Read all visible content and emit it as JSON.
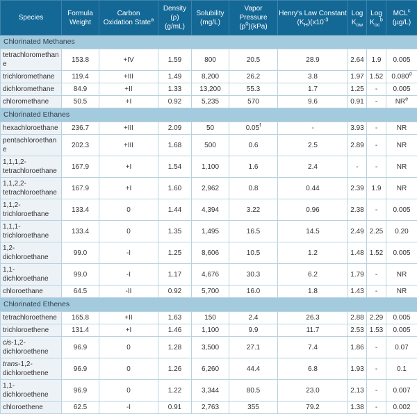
{
  "table": {
    "header": [
      {
        "name": "species",
        "lines": [
          "Species"
        ]
      },
      {
        "name": "formula-weight",
        "lines": [
          "Formula",
          "Weight"
        ]
      },
      {
        "name": "carbon-oxidation-state",
        "lines": [
          "Carbon",
          [
            {
              "t": "Oxidation State"
            },
            {
              "t": "a",
              "s": "sup"
            }
          ]
        ]
      },
      {
        "name": "density",
        "lines": [
          "Density (ρ)",
          "(g/mL)"
        ]
      },
      {
        "name": "solubility",
        "lines": [
          "Solubility",
          "(mg/L)"
        ]
      },
      {
        "name": "vapor-pressure",
        "lines": [
          "Vapor Pressure",
          [
            {
              "t": "(p"
            },
            {
              "t": "0",
              "s": "sup"
            },
            {
              "t": ")(kPa)"
            }
          ]
        ]
      },
      {
        "name": "henrys-law-constant",
        "lines": [
          "Henry's Law Constant",
          [
            {
              "t": "(K"
            },
            {
              "t": "H",
              "s": "sub"
            },
            {
              "t": ")(x10"
            },
            {
              "t": "-3",
              "s": "sup"
            }
          ]
        ]
      },
      {
        "name": "log-kow",
        "lines": [
          "Log",
          [
            {
              "t": "K"
            },
            {
              "t": "ow",
              "s": "sub"
            }
          ]
        ]
      },
      {
        "name": "log-koc",
        "lines": [
          "Log",
          [
            {
              "t": "K"
            },
            {
              "t": "oc",
              "s": "sub"
            },
            {
              "t": "b",
              "s": "sup"
            }
          ]
        ]
      },
      {
        "name": "mcl",
        "lines": [
          [
            {
              "t": "MCL"
            },
            {
              "t": "c",
              "s": "sup"
            }
          ],
          "(µg/L)"
        ]
      }
    ],
    "sections": [
      {
        "title": "Chlorinated Methanes",
        "rows": [
          {
            "species": "tetrachloromethane",
            "values": [
              "153.8",
              "+IV",
              "1.59",
              "800",
              "20.5",
              "28.9",
              "2.64",
              "1.9",
              "0.005"
            ]
          },
          {
            "species": "trichloromethane",
            "values": [
              "119.4",
              "+III",
              "1.49",
              "8,200",
              "26.2",
              "3.8",
              "1.97",
              "1.52",
              [
                {
                  "t": "0.080"
                },
                {
                  "t": "d",
                  "s": "sup"
                }
              ]
            ]
          },
          {
            "species": "dichloromethane",
            "values": [
              "84.9",
              "+II",
              "1.33",
              "13,200",
              "55.3",
              "1.7",
              "1.25",
              "-",
              "0.005"
            ]
          },
          {
            "species": "chloromethane",
            "values": [
              "50.5",
              "+I",
              "0.92",
              "5,235",
              "570",
              "9.6",
              "0.91",
              "-",
              [
                {
                  "t": "NR"
                },
                {
                  "t": "e",
                  "s": "sup"
                }
              ]
            ]
          }
        ]
      },
      {
        "title": "Chlorinated Ethanes",
        "rows": [
          {
            "species": "hexachloroethane",
            "values": [
              "236.7",
              "+III",
              "2.09",
              "50",
              [
                {
                  "t": "0.05"
                },
                {
                  "t": "f",
                  "s": "sup"
                }
              ],
              "-",
              "3.93",
              "-",
              "NR"
            ]
          },
          {
            "species": "pentachloroethane",
            "values": [
              "202.3",
              "+III",
              "1.68",
              "500",
              "0.6",
              "2.5",
              "2.89",
              "-",
              "NR"
            ]
          },
          {
            "species": "1,1,1,2-tetrachloroethane",
            "values": [
              "167.9",
              "+I",
              "1.54",
              "1,100",
              "1.6",
              "2.4",
              "-",
              "-",
              "NR"
            ]
          },
          {
            "species": "1,1,2,2-tetrachloroethane",
            "values": [
              "167.9",
              "+I",
              "1.60",
              "2,962",
              "0.8",
              "0.44",
              "2.39",
              "1.9",
              "NR"
            ]
          },
          {
            "species": "1,1,2-trichloroethane",
            "values": [
              "133.4",
              "0",
              "1.44",
              "4,394",
              "3.22",
              "0.96",
              "2.38",
              "-",
              "0.005"
            ]
          },
          {
            "species": "1,1,1-trichloroethane",
            "values": [
              "133.4",
              "0",
              "1.35",
              "1,495",
              "16.5",
              "14.5",
              "2.49",
              "2.25",
              "0.20"
            ]
          },
          {
            "species": "1,2-dichloroethane",
            "values": [
              "99.0",
              "-I",
              "1.25",
              "8,606",
              "10.5",
              "1.2",
              "1.48",
              "1.52",
              "0.005"
            ]
          },
          {
            "species": "1,1-dichloroethane",
            "values": [
              "99.0",
              "-I",
              "1.17",
              "4,676",
              "30.3",
              "6.2",
              "1.79",
              "-",
              "NR"
            ]
          },
          {
            "species": "chloroethane",
            "values": [
              "64.5",
              "-II",
              "0.92",
              "5,700",
              "16.0",
              "1.8",
              "1.43",
              "-",
              "NR"
            ]
          }
        ]
      },
      {
        "title": "Chlorinated Ethenes",
        "rows": [
          {
            "species": "tetrachloroethene",
            "values": [
              "165.8",
              "+II",
              "1.63",
              "150",
              "2.4",
              "26.3",
              "2.88",
              "2.29",
              "0.005"
            ]
          },
          {
            "species": "trichloroethene",
            "values": [
              "131.4",
              "+I",
              "1.46",
              "1,100",
              "9.9",
              "11.7",
              "2.53",
              "1.53",
              "0.005"
            ]
          },
          {
            "species": [
              {
                "t": "cis",
                "s": "i"
              },
              {
                "t": "-1,2-dichloroethene"
              }
            ],
            "values": [
              "96.9",
              "0",
              "1.28",
              "3,500",
              "27.1",
              "7.4",
              "1.86",
              "-",
              "0.07"
            ]
          },
          {
            "species": [
              {
                "t": "trans",
                "s": "i"
              },
              {
                "t": "-1,2-dichloroethene"
              }
            ],
            "values": [
              "96.9",
              "0",
              "1.26",
              "6,260",
              "44.4",
              "6.8",
              "1.93",
              "-",
              "0.1"
            ]
          },
          {
            "species": "1,1-dichloroethene",
            "values": [
              "96.9",
              "0",
              "1.22",
              "3,344",
              "80.5",
              "23.0",
              "2.13",
              "-",
              "0.007"
            ]
          },
          {
            "species": "chloroethene",
            "values": [
              "62.5",
              "-I",
              "0.91",
              "2,763",
              "355",
              "79.2",
              "1.38",
              "-",
              "0.002"
            ]
          }
        ]
      }
    ],
    "colors": {
      "header_bg": "#136896",
      "header_text": "#ffffff",
      "section_bg": "#a4cadd",
      "species_cell_bg": "#edf2f7",
      "data_cell_bg": "#ffffff",
      "border": "#b9d2df",
      "body_text": "#333333"
    }
  }
}
